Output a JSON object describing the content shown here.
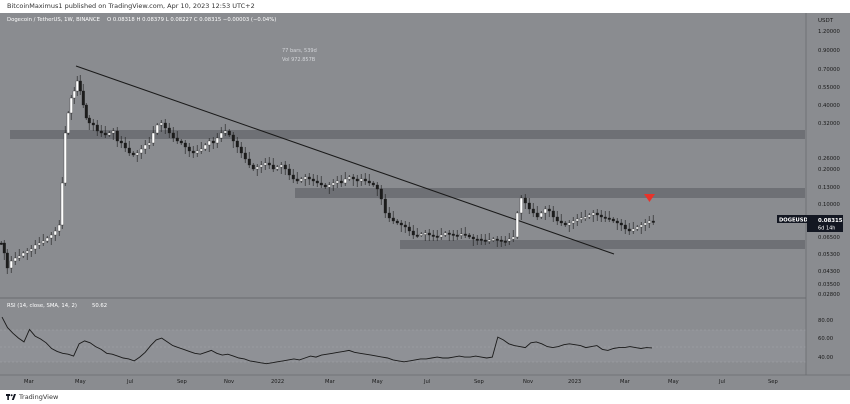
{
  "header": {
    "publisher_text": "BitcoinMaximus1 published on TradingView.com, Apr 10, 2023 12:53 UTC+2"
  },
  "footer": {
    "brand": "TradingView"
  },
  "price_pane": {
    "symbol_line": "Dogecoin / TetherUS, 1W, BINANCE",
    "ohlc": "O 0.08318  H 0.08379  L 0.08227  C 0.08315  −0.00003 (−0.04%)",
    "stats_bars": "77 bars, 539d",
    "stats_vol": "Vol 972.857B",
    "currency": "USDT",
    "price_labels": [
      "1.20000",
      "0.90000",
      "0.70000",
      "0.55000",
      "0.40000",
      "0.32000",
      "0.26000",
      "0.20000",
      "0.13000",
      "0.10000",
      "0.08315",
      "0.06500",
      "0.05300",
      "0.04300",
      "0.03500",
      "0.02800"
    ],
    "ticker_tag": "DOGEUSDT",
    "price_tag": "0.08315",
    "countdown": "6d 14h"
  },
  "rsi_pane": {
    "legend": "RSI (14, close, SMA, 14, 2)",
    "value": "50.62",
    "levels": [
      "80.00",
      "60.00",
      "40.00"
    ]
  },
  "time_axis": {
    "labels": [
      "Mar",
      "May",
      "Jul",
      "Sep",
      "Nov",
      "2022",
      "Mar",
      "May",
      "Jul",
      "Sep",
      "Nov",
      "2023",
      "Mar",
      "May",
      "Jul",
      "Sep"
    ]
  },
  "colors": {
    "background": "#8a8c90",
    "up_candle": "#ffffff",
    "down_candle": "#1c1c1c",
    "zone": "#6e7075",
    "marker": "#e8332a",
    "line": "#1a1a1a"
  },
  "chart_data": {
    "type": "candlestick",
    "timeframe": "1W",
    "rsi": [
      83,
      72,
      66,
      61,
      57,
      70,
      63,
      60,
      56,
      50,
      47,
      45,
      44,
      42,
      55,
      58,
      56,
      52,
      49,
      45,
      44,
      42,
      40,
      39,
      37,
      41,
      46,
      53,
      59,
      61,
      57,
      53,
      51,
      49,
      47,
      45,
      44,
      46,
      48,
      45,
      43,
      44,
      42,
      40,
      39,
      37,
      36,
      35,
      34,
      35,
      36,
      37,
      38,
      39,
      38,
      40,
      42,
      41,
      43,
      44,
      45,
      46,
      47,
      48,
      46,
      45,
      44,
      43,
      42,
      41,
      40,
      38,
      37,
      36,
      37,
      38,
      39,
      39,
      40,
      41,
      40,
      40,
      41,
      42,
      41,
      41,
      42,
      41,
      40,
      41,
      62,
      59,
      55,
      53,
      52,
      51,
      56,
      57,
      55,
      52,
      51,
      52,
      54,
      55,
      54,
      53,
      51,
      52,
      53,
      49,
      48,
      50,
      51,
      51,
      52,
      51,
      50,
      51,
      50.62
    ]
  }
}
